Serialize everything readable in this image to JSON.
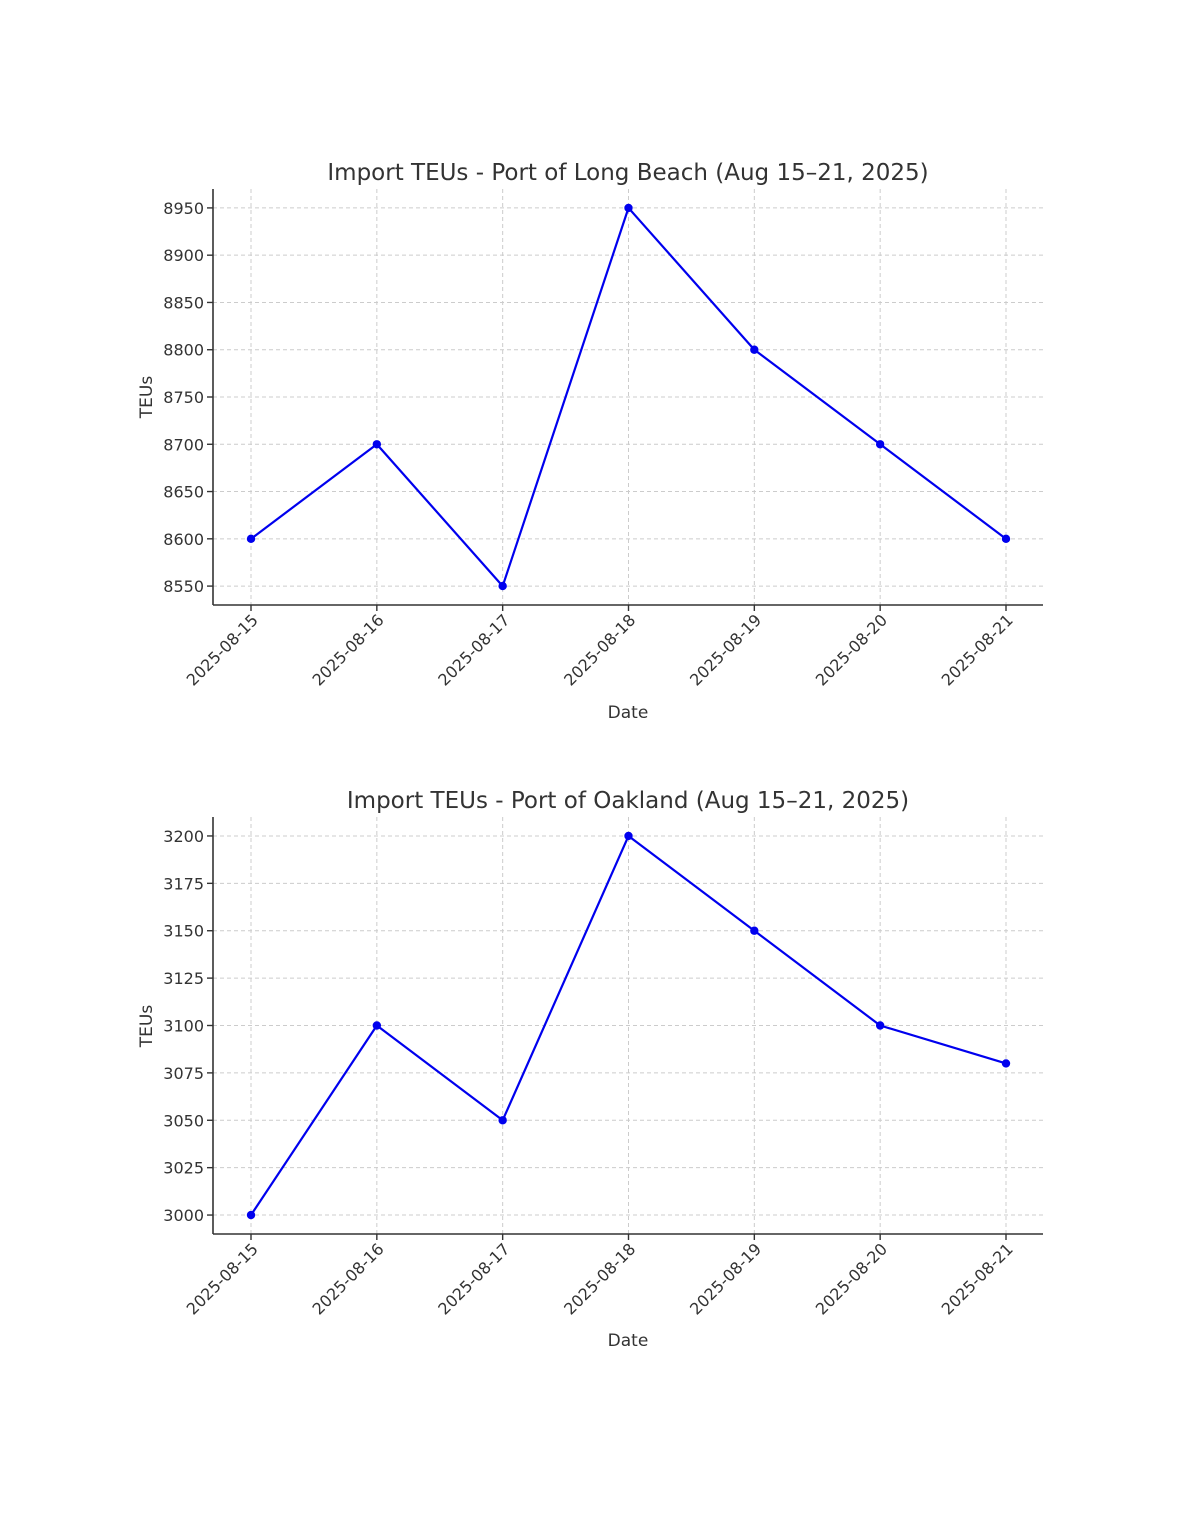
{
  "colors": {
    "series": "#0000ee",
    "grid": "#cccccc",
    "axis": "#333333"
  },
  "chart_data": [
    {
      "type": "line",
      "title": "Import TEUs - Port of Long Beach (Aug 15–21, 2025)",
      "xlabel": "Date",
      "ylabel": "TEUs",
      "categories": [
        "2025-08-15",
        "2025-08-16",
        "2025-08-17",
        "2025-08-18",
        "2025-08-19",
        "2025-08-20",
        "2025-08-21"
      ],
      "series": [
        {
          "values": [
            8600,
            8700,
            8550,
            8950,
            8800,
            8700,
            8600
          ]
        }
      ],
      "yticks": [
        8550,
        8600,
        8650,
        8700,
        8750,
        8800,
        8850,
        8900,
        8950
      ],
      "ylim": [
        8530,
        8970
      ],
      "grid": true
    },
    {
      "type": "line",
      "title": "Import TEUs - Port of Oakland (Aug 15–21, 2025)",
      "xlabel": "Date",
      "ylabel": "TEUs",
      "categories": [
        "2025-08-15",
        "2025-08-16",
        "2025-08-17",
        "2025-08-18",
        "2025-08-19",
        "2025-08-20",
        "2025-08-21"
      ],
      "series": [
        {
          "values": [
            3000,
            3100,
            3050,
            3200,
            3150,
            3100,
            3080
          ]
        }
      ],
      "yticks": [
        3000,
        3025,
        3050,
        3075,
        3100,
        3125,
        3150,
        3175,
        3200
      ],
      "ylim": [
        2990,
        3210
      ],
      "grid": true
    }
  ]
}
